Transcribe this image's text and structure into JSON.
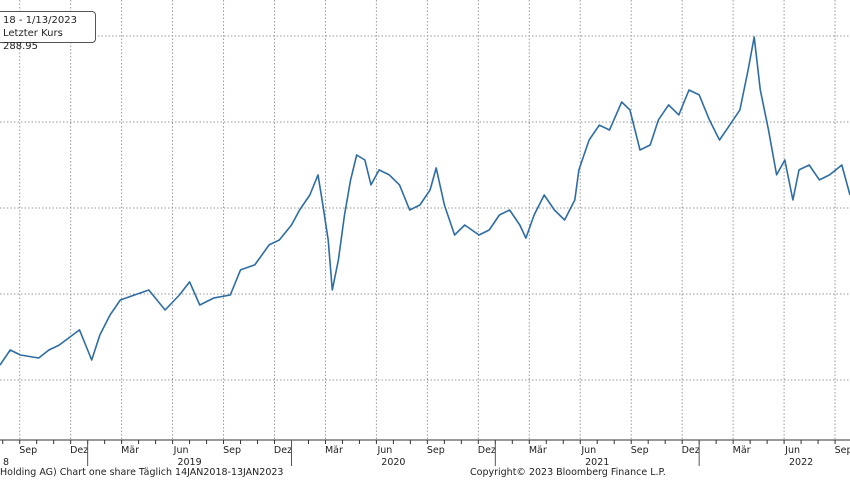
{
  "legend": {
    "range": "18 - 1/13/2023",
    "last_price_label": "Letzter Kurs",
    "last_price": "288.95"
  },
  "footer": {
    "source": "Holding AG) Chart one share  Täglich 14JAN2018-13JAN2023",
    "copyright": "Copyright© 2023 Bloomberg Finance L.P."
  },
  "colors": {
    "line": "#2e6da4",
    "grid": "#9a9a9a"
  },
  "chart_data": {
    "type": "line",
    "title": "",
    "xlabel": "",
    "ylabel": "",
    "x_unit": "decimal year",
    "xlim": [
      2018.57,
      2022.74
    ],
    "ylim": [
      146.5,
      402.3
    ],
    "grid": true,
    "legend_position": "top-left",
    "x_tick_labels": [
      "Sep",
      "Dez",
      "Mär",
      "Jun",
      "Sep",
      "Dez",
      "Mär",
      "Jun",
      "Sep",
      "Dez",
      "Mär",
      "Jun",
      "Sep",
      "Dez",
      "Mär",
      "Jun",
      "Sep"
    ],
    "year_labels": [
      "8",
      "2019",
      "2020",
      "2021",
      "2022"
    ],
    "series": [
      {
        "name": "Letzter Kurs",
        "x": [
          2018.57,
          2018.62,
          2018.67,
          2018.76,
          2018.81,
          2018.86,
          2018.96,
          2019.02,
          2019.06,
          2019.11,
          2019.16,
          2019.23,
          2019.3,
          2019.38,
          2019.45,
          2019.5,
          2019.55,
          2019.62,
          2019.7,
          2019.75,
          2019.82,
          2019.89,
          2019.94,
          2020.0,
          2020.04,
          2020.09,
          2020.13,
          2020.15,
          2020.18,
          2020.2,
          2020.23,
          2020.26,
          2020.29,
          2020.32,
          2020.36,
          2020.39,
          2020.43,
          2020.48,
          2020.53,
          2020.58,
          2020.63,
          2020.68,
          2020.71,
          2020.75,
          2020.8,
          2020.85,
          2020.92,
          2020.97,
          2021.02,
          2021.07,
          2021.12,
          2021.15,
          2021.19,
          2021.24,
          2021.29,
          2021.34,
          2021.39,
          2021.41,
          2021.46,
          2021.51,
          2021.56,
          2021.62,
          2021.66,
          2021.71,
          2021.76,
          2021.8,
          2021.85,
          2021.9,
          2021.95,
          2022.0,
          2022.05,
          2022.1,
          2022.15,
          2022.2,
          2022.24,
          2022.27,
          2022.3,
          2022.34,
          2022.38,
          2022.42,
          2022.46,
          2022.49,
          2022.54,
          2022.59,
          2022.64,
          2022.7,
          2022.74
        ],
        "values": [
          190.1,
          198.8,
          195.9,
          194.2,
          198.8,
          201.7,
          210.5,
          193.0,
          207.6,
          219.2,
          227.9,
          230.8,
          233.7,
          222.1,
          230.8,
          238.4,
          225.0,
          229.1,
          230.8,
          245.4,
          248.3,
          259.9,
          262.8,
          271.5,
          280.2,
          288.95,
          300.6,
          286.0,
          262.8,
          233.7,
          251.2,
          277.3,
          297.7,
          312.2,
          309.3,
          294.8,
          303.5,
          300.6,
          294.8,
          280.2,
          283.1,
          291.9,
          304.7,
          283.1,
          265.7,
          271.5,
          265.7,
          268.6,
          277.3,
          280.2,
          271.5,
          263.9,
          277.3,
          288.95,
          280.2,
          274.4,
          286.0,
          303.5,
          320.9,
          329.6,
          326.7,
          343.0,
          338.4,
          315.1,
          318.0,
          332.6,
          341.3,
          335.5,
          350.0,
          347.1,
          332.6,
          320.9,
          329.6,
          338.4,
          361.6,
          380.8,
          350.0,
          326.7,
          300.6,
          309.3,
          286.0,
          303.5,
          306.4,
          297.7,
          300.6,
          306.4,
          288.95
        ]
      }
    ]
  }
}
